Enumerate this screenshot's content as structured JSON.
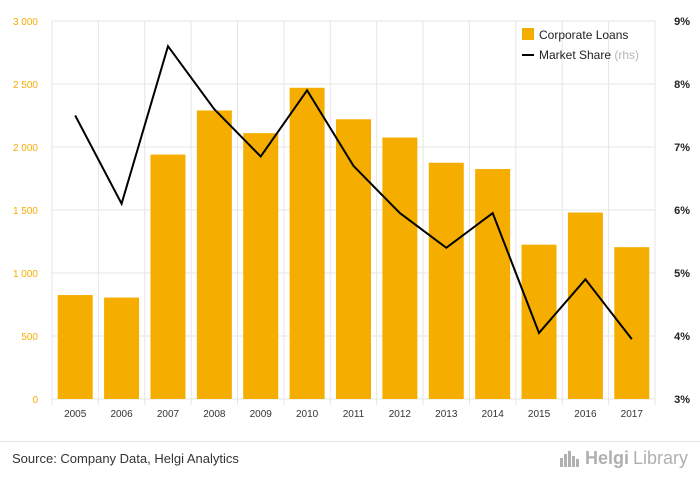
{
  "chart_data": {
    "type": "bar",
    "categories": [
      "2005",
      "2006",
      "2007",
      "2008",
      "2009",
      "2010",
      "2011",
      "2012",
      "2013",
      "2014",
      "2015",
      "2016",
      "2017"
    ],
    "series": [
      {
        "name": "Corporate Loans",
        "type": "bar",
        "axis": "left",
        "values": [
          825,
          805,
          1940,
          2290,
          2110,
          2470,
          2220,
          2075,
          1875,
          1825,
          1225,
          1480,
          1205
        ]
      },
      {
        "name": "Market Share",
        "name_suffix": "(rhs)",
        "type": "line",
        "axis": "right",
        "values": [
          7.5,
          6.1,
          8.6,
          7.6,
          6.85,
          7.9,
          6.7,
          5.95,
          5.4,
          5.95,
          4.05,
          4.9,
          3.95
        ]
      }
    ],
    "ylim": [
      0,
      3000
    ],
    "y_ticks": [
      "0",
      "500",
      "1 000",
      "1 500",
      "2 000",
      "2 500",
      "3 000"
    ],
    "y2lim": [
      3,
      9
    ],
    "y2_ticks": [
      "3%",
      "4%",
      "5%",
      "6%",
      "7%",
      "8%",
      "9%"
    ],
    "legend_position": "top-right",
    "grid": true,
    "colors": {
      "bar": "#f5ae00",
      "line": "#000000",
      "left_ticks": "#f5ae00",
      "grid": "#e6e6e6"
    }
  },
  "footer": {
    "source": "Source: Company Data, Helgi Analytics",
    "brand_bold": "Helgi",
    "brand_light": "Library",
    "brand_icon": "skyline-icon"
  }
}
